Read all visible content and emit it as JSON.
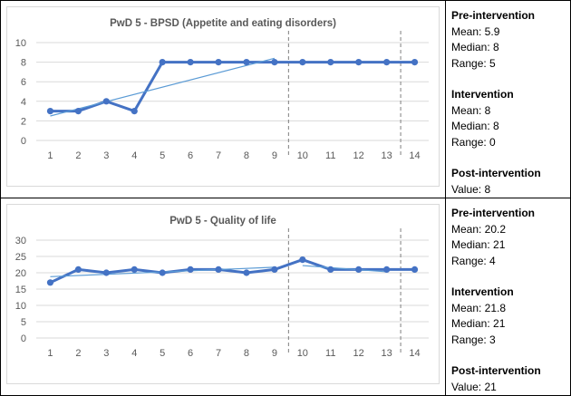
{
  "chart_data": [
    {
      "type": "line",
      "title": "PwD 5 - BPSD (Appetite and eating disorders)",
      "categories": [
        1,
        2,
        3,
        4,
        5,
        6,
        7,
        8,
        9,
        10,
        11,
        12,
        13,
        14
      ],
      "values": [
        3,
        3,
        4,
        3,
        8,
        8,
        8,
        8,
        8,
        8,
        8,
        8,
        8,
        8
      ],
      "ylim": [
        0,
        10
      ],
      "yticks": [
        0,
        2,
        4,
        6,
        8,
        10
      ],
      "grid": true,
      "phase_lines": [
        9.5,
        13.5
      ],
      "trend_lines": [
        {
          "x": [
            1,
            9
          ],
          "y": [
            2.5,
            8.4
          ]
        }
      ],
      "color": "#4472C4"
    },
    {
      "type": "line",
      "title": "PwD 5 - Quality of life",
      "categories": [
        1,
        2,
        3,
        4,
        5,
        6,
        7,
        8,
        9,
        10,
        11,
        12,
        13,
        14
      ],
      "values": [
        17,
        21,
        20,
        21,
        20,
        21,
        21,
        20,
        21,
        24,
        21,
        21,
        21,
        21
      ],
      "ylim": [
        0,
        30
      ],
      "yticks": [
        0,
        5,
        10,
        15,
        20,
        25,
        30
      ],
      "grid": true,
      "phase_lines": [
        9.5,
        13.5
      ],
      "trend_lines": [
        {
          "x": [
            1,
            9
          ],
          "y": [
            18.8,
            21.7
          ]
        },
        {
          "x": [
            10,
            13
          ],
          "y": [
            22.2,
            20.3
          ]
        }
      ],
      "color": "#4472C4"
    }
  ],
  "stats": [
    {
      "pre_h": "Pre-intervention",
      "pre": [
        "Mean: 5.9",
        "Median: 8",
        "Range: 5"
      ],
      "int_h": "Intervention",
      "int": [
        "Mean: 8",
        "Median: 8",
        "Range: 0"
      ],
      "post_h": "Post-intervention",
      "post": [
        "Value: 8"
      ]
    },
    {
      "pre_h": "Pre-intervention",
      "pre": [
        "Mean: 20.2",
        "Median: 21",
        "Range: 4"
      ],
      "int_h": "Intervention",
      "int": [
        "Mean: 21.8",
        "Median: 21",
        "Range: 3"
      ],
      "post_h": "Post-intervention",
      "post": [
        "Value: 21"
      ]
    }
  ]
}
